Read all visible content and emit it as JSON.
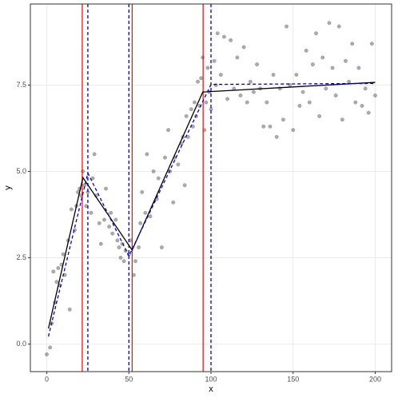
{
  "chart_data": {
    "type": "scatter",
    "x_label": "x",
    "y_label": "y",
    "xlim": [
      -10,
      210
    ],
    "ylim": [
      -0.8,
      9.85
    ],
    "xticks": [
      0,
      50,
      100,
      150,
      200
    ],
    "yticks": [
      {
        "value": 0,
        "label": "0.0"
      },
      {
        "value": 2.5,
        "label": "2.5"
      },
      {
        "value": 5,
        "label": "5.0"
      },
      {
        "value": 7.5,
        "label": "7.5"
      }
    ],
    "grid": true,
    "points": {
      "color": "#7f7f7f",
      "x": [
        0,
        2,
        3,
        4,
        5,
        6,
        7,
        8,
        9,
        10,
        11,
        13,
        14,
        15,
        17,
        18,
        19,
        20,
        21,
        22,
        23,
        24,
        25,
        27,
        28,
        29,
        30,
        32,
        33,
        35,
        36,
        38,
        39,
        40,
        42,
        43,
        44,
        45,
        46,
        47,
        48,
        50,
        51,
        53,
        54,
        56,
        57,
        58,
        60,
        61,
        63,
        65,
        67,
        68,
        70,
        72,
        74,
        75,
        77,
        78,
        80,
        82,
        83,
        84,
        85,
        86,
        88,
        89,
        90,
        91,
        92,
        93,
        94,
        95,
        96,
        97,
        98,
        99,
        100,
        102,
        103,
        104,
        106,
        108,
        110,
        112,
        114,
        116,
        118,
        120,
        122,
        124,
        126,
        128,
        130,
        132,
        134,
        136,
        138,
        140,
        142,
        144,
        146,
        148,
        150,
        152,
        154,
        156,
        158,
        160,
        162,
        164,
        166,
        168,
        170,
        172,
        174,
        176,
        178,
        180,
        182,
        184,
        186,
        188,
        190,
        192,
        194,
        196,
        198,
        200
      ],
      "y": [
        -0.3,
        -0.1,
        0.6,
        2.1,
        1.2,
        1.8,
        2.2,
        1.7,
        2.3,
        2.6,
        2.0,
        3.0,
        1.0,
        3.9,
        3.3,
        4.0,
        4.4,
        4.5,
        4.3,
        5.0,
        4.6,
        4.0,
        4.4,
        3.8,
        4.8,
        5.5,
        4.3,
        3.5,
        2.9,
        3.6,
        4.5,
        3.4,
        3.8,
        3.2,
        3.6,
        3.0,
        2.8,
        2.5,
        2.9,
        2.4,
        2.7,
        2.6,
        3.0,
        2.0,
        2.4,
        2.8,
        3.5,
        4.4,
        3.8,
        5.5,
        3.7,
        5.0,
        4.2,
        4.8,
        2.8,
        5.4,
        6.2,
        5.0,
        4.1,
        5.4,
        5.2,
        5.8,
        6.0,
        4.6,
        6.6,
        6.0,
        6.8,
        6.3,
        7.0,
        6.6,
        7.6,
        6.9,
        7.7,
        8.3,
        6.2,
        7.0,
        8.0,
        7.3,
        6.8,
        8.2,
        7.5,
        9.0,
        7.8,
        8.9,
        7.1,
        8.8,
        7.4,
        8.3,
        7.2,
        8.6,
        7.0,
        7.6,
        7.3,
        8.1,
        7.4,
        6.3,
        7.0,
        6.3,
        7.8,
        6.0,
        7.4,
        6.5,
        9.2,
        7.5,
        6.2,
        7.8,
        6.9,
        7.3,
        8.5,
        7.0,
        8.1,
        9.0,
        6.6,
        8.3,
        7.4,
        9.3,
        8.0,
        7.2,
        9.2,
        6.5,
        8.2,
        7.6,
        8.7,
        7.0,
        8.0,
        6.9,
        7.4,
        6.7,
        8.7,
        7.2
      ]
    },
    "lines": [
      {
        "color": "#000000",
        "dashed": false,
        "x": [
          1,
          22,
          52,
          95,
          200
        ],
        "y": [
          0.45,
          4.82,
          2.72,
          7.3,
          7.58
        ]
      },
      {
        "color": "#0000cc",
        "dashed": true,
        "x": [
          1,
          25,
          50,
          100,
          200
        ],
        "y": [
          0.22,
          4.95,
          2.55,
          7.52,
          7.55
        ]
      }
    ],
    "vlines": [
      {
        "x": 21.6,
        "color": "#e41a1c",
        "dashed": false
      },
      {
        "x": 52,
        "color": "#e41a1c",
        "dashed": false
      },
      {
        "x": 95.2,
        "color": "#e41a1c",
        "dashed": false
      },
      {
        "x": 25,
        "color": "#0000cc",
        "dashed": true
      },
      {
        "x": 50,
        "color": "#0000cc",
        "dashed": true
      },
      {
        "x": 100,
        "color": "#0000cc",
        "dashed": true
      }
    ]
  }
}
